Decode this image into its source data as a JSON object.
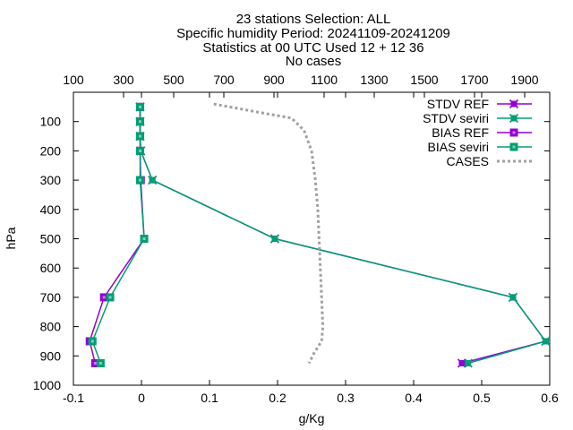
{
  "title_lines": [
    "23 stations Selection: ALL",
    "Specific humidity  Period: 20241109-20241209",
    "Statistics at 00 UTC  Used 12 + 12 36",
    "No cases"
  ],
  "chart_data": {
    "type": "line",
    "title": "23 stations Selection: ALL",
    "xlabel": "g/Kg",
    "ylabel": "hPa",
    "xlim": [
      -0.1,
      0.6
    ],
    "ylim": [
      1000,
      0
    ],
    "y_reversed": true,
    "x_ticks": [
      "-0.1",
      "0",
      "0.1",
      "0.2",
      "0.3",
      "0.4",
      "0.5",
      "0.6"
    ],
    "x_tick_values": [
      -0.1,
      0,
      0.1,
      0.2,
      0.3,
      0.4,
      0.5,
      0.6
    ],
    "y_ticks": [
      "100",
      "200",
      "300",
      "400",
      "500",
      "600",
      "700",
      "800",
      "900",
      "1000"
    ],
    "y_tick_values": [
      100,
      200,
      300,
      400,
      500,
      600,
      700,
      800,
      900,
      1000
    ],
    "x2lim": [
      100,
      2000
    ],
    "x2_ticks": [
      "100",
      "300",
      "500",
      "700",
      "900",
      "1100",
      "1300",
      "1500",
      "1700",
      "1900"
    ],
    "x2_tick_values": [
      100,
      300,
      500,
      700,
      900,
      1100,
      1300,
      1500,
      1700,
      1900
    ],
    "grid": false,
    "legend_position": "top-right",
    "series": [
      {
        "name": "STDV REF",
        "color": "#9400d3",
        "marker": "x-box",
        "axis": "x1",
        "points": [
          [
            -0.002,
            50
          ],
          [
            -0.002,
            100
          ],
          [
            -0.002,
            150
          ],
          [
            -0.001,
            200
          ],
          [
            0.016,
            300
          ],
          [
            0.196,
            500
          ],
          [
            0.546,
            700
          ],
          [
            0.594,
            850
          ],
          [
            0.471,
            925
          ]
        ]
      },
      {
        "name": "STDV seviri",
        "color": "#009e73",
        "marker": "x-box",
        "axis": "x1",
        "points": [
          [
            -0.002,
            50
          ],
          [
            -0.002,
            100
          ],
          [
            -0.002,
            150
          ],
          [
            -0.001,
            200
          ],
          [
            0.016,
            300
          ],
          [
            0.196,
            500
          ],
          [
            0.546,
            700
          ],
          [
            0.594,
            850
          ],
          [
            0.48,
            925
          ]
        ]
      },
      {
        "name": "BIAS REF",
        "color": "#9400d3",
        "marker": "square",
        "axis": "x1",
        "points": [
          [
            -0.002,
            50
          ],
          [
            -0.002,
            100
          ],
          [
            -0.002,
            150
          ],
          [
            -0.002,
            200
          ],
          [
            -0.001,
            300
          ],
          [
            0.004,
            500
          ],
          [
            -0.055,
            700
          ],
          [
            -0.076,
            850
          ],
          [
            -0.068,
            925
          ]
        ]
      },
      {
        "name": "BIAS seviri",
        "color": "#009e73",
        "marker": "square",
        "axis": "x1",
        "points": [
          [
            -0.002,
            50
          ],
          [
            -0.002,
            100
          ],
          [
            -0.002,
            150
          ],
          [
            -0.002,
            200
          ],
          [
            -0.002,
            300
          ],
          [
            0.004,
            500
          ],
          [
            -0.046,
            700
          ],
          [
            -0.072,
            850
          ],
          [
            -0.06,
            925
          ]
        ]
      },
      {
        "name": "CASES",
        "color": "#a0a0a0",
        "marker": "none",
        "dashed": true,
        "axis": "x2",
        "points": [
          [
            660,
            40
          ],
          [
            850,
            70
          ],
          [
            970,
            88
          ],
          [
            1020,
            130
          ],
          [
            1050,
            200
          ],
          [
            1065,
            300
          ],
          [
            1075,
            400
          ],
          [
            1080,
            500
          ],
          [
            1085,
            600
          ],
          [
            1090,
            700
          ],
          [
            1095,
            800
          ],
          [
            1090,
            850
          ],
          [
            1060,
            890
          ],
          [
            1040,
            925
          ]
        ]
      }
    ]
  }
}
